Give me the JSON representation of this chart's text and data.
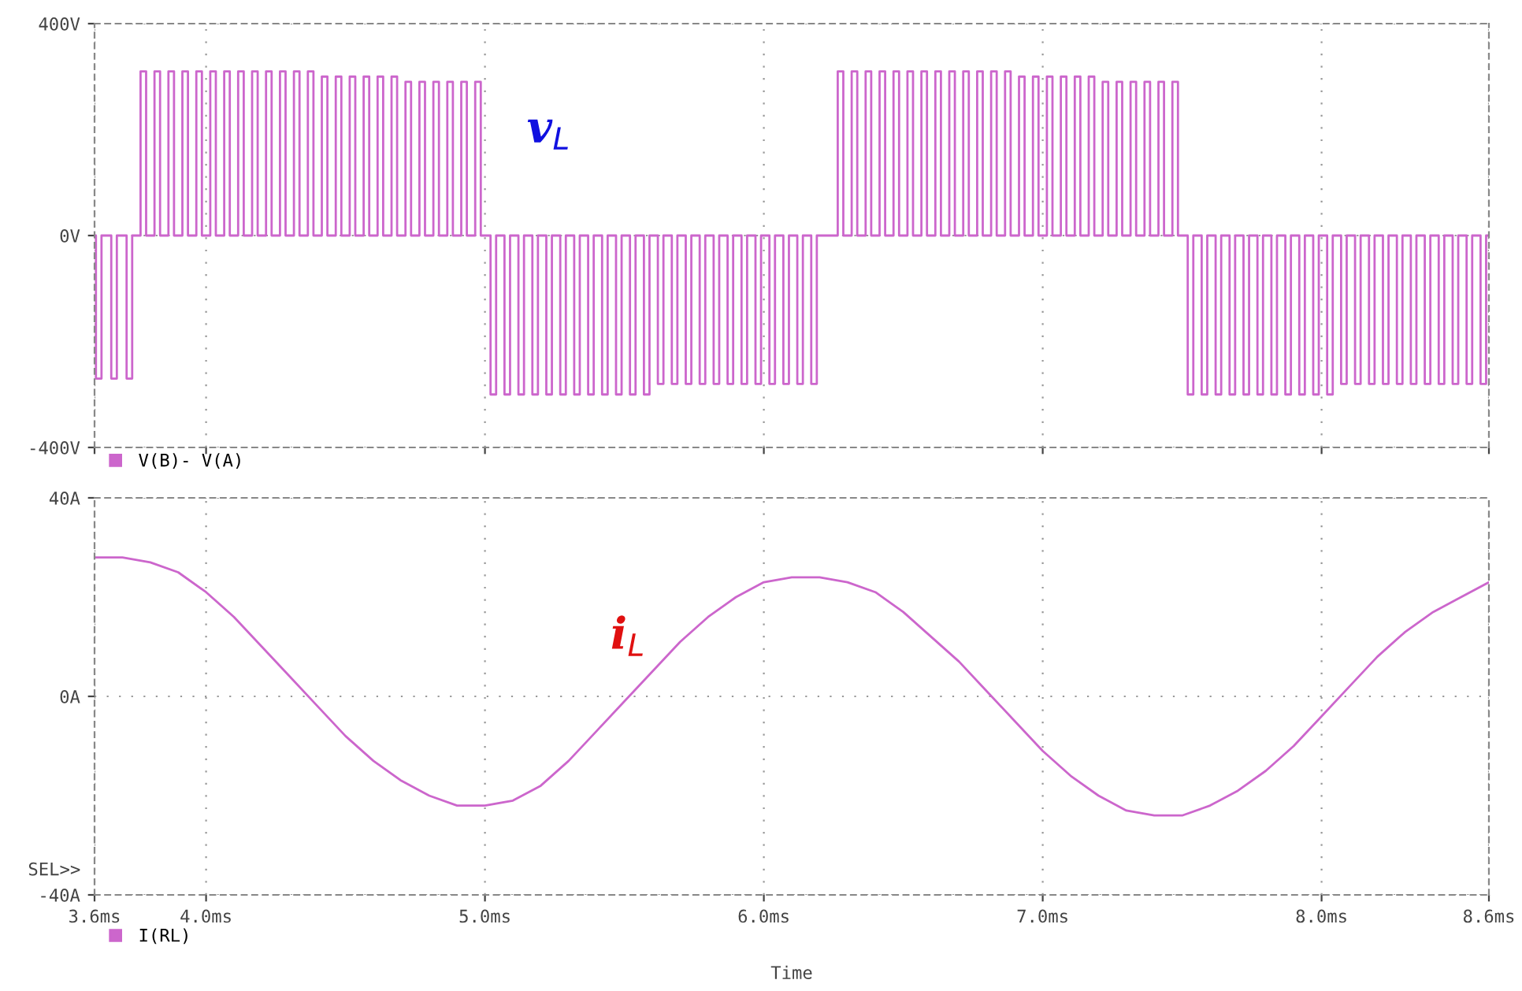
{
  "chart_data": [
    {
      "type": "step",
      "ylim": [
        -400,
        400
      ],
      "yticks": [
        {
          "value": 400,
          "label": "400V"
        },
        {
          "value": 0,
          "label": "0V"
        },
        {
          "value": -400,
          "label": "-400V"
        }
      ],
      "xlim": [
        3.6,
        8.6
      ],
      "xticks": [
        {
          "value": 3.6,
          "label": null
        },
        {
          "value": 4.0,
          "label": null
        },
        {
          "value": 5.0,
          "label": null
        },
        {
          "value": 6.0,
          "label": null
        },
        {
          "value": 7.0,
          "label": null
        },
        {
          "value": 8.0,
          "label": null
        },
        {
          "value": 8.6,
          "label": null
        }
      ],
      "tick_labels": "y",
      "grid": true,
      "legend": "bottom left",
      "marker": "none",
      "line_style": "solid",
      "annotations": [
        "v$_{L}$"
      ],
      "series": [
        {
          "name": "V(B)- V(A)",
          "color": "#cc66cc",
          "x": [
            3.6,
            3.605,
            3.625,
            3.66,
            3.68,
            3.715,
            3.735,
            3.765,
            3.785,
            3.815,
            3.835,
            3.865,
            3.885,
            3.915,
            3.935,
            3.965,
            3.985,
            4.015,
            4.035,
            4.065,
            4.085,
            4.115,
            4.135,
            4.165,
            4.185,
            4.215,
            4.235,
            4.265,
            4.285,
            4.315,
            4.335,
            4.365,
            4.385,
            4.415,
            4.435,
            4.465,
            4.485,
            4.515,
            4.535,
            4.565,
            4.585,
            4.615,
            4.635,
            4.665,
            4.685,
            4.715,
            4.735,
            4.765,
            4.785,
            4.815,
            4.835,
            4.865,
            4.885,
            4.915,
            4.935,
            4.965,
            4.985,
            5.02,
            5.04,
            5.07,
            5.09,
            5.12,
            5.14,
            5.17,
            5.19,
            5.22,
            5.24,
            5.27,
            5.29,
            5.32,
            5.34,
            5.37,
            5.39,
            5.42,
            5.44,
            5.47,
            5.49,
            5.52,
            5.54,
            5.57,
            5.59,
            5.62,
            5.64,
            5.67,
            5.69,
            5.72,
            5.74,
            5.77,
            5.79,
            5.82,
            5.84,
            5.87,
            5.89,
            5.92,
            5.94,
            5.97,
            5.99,
            6.02,
            6.04,
            6.07,
            6.09,
            6.12,
            6.14,
            6.17,
            6.19,
            6.265,
            6.285,
            6.315,
            6.335,
            6.365,
            6.385,
            6.415,
            6.435,
            6.465,
            6.485,
            6.515,
            6.535,
            6.565,
            6.585,
            6.615,
            6.635,
            6.665,
            6.685,
            6.715,
            6.735,
            6.765,
            6.785,
            6.815,
            6.835,
            6.865,
            6.885,
            6.915,
            6.935,
            6.965,
            6.985,
            7.015,
            7.035,
            7.065,
            7.085,
            7.115,
            7.135,
            7.165,
            7.185,
            7.215,
            7.235,
            7.265,
            7.285,
            7.315,
            7.335,
            7.365,
            7.385,
            7.415,
            7.435,
            7.465,
            7.485,
            7.52,
            7.54,
            7.57,
            7.59,
            7.62,
            7.64,
            7.67,
            7.69,
            7.72,
            7.74,
            7.77,
            7.79,
            7.82,
            7.84,
            7.87,
            7.89,
            7.92,
            7.94,
            7.97,
            7.99,
            8.02,
            8.04,
            8.07,
            8.09,
            8.12,
            8.14,
            8.17,
            8.19,
            8.22,
            8.24,
            8.27,
            8.29,
            8.32,
            8.34,
            8.37,
            8.39,
            8.42,
            8.44,
            8.47,
            8.49,
            8.52,
            8.54,
            8.57,
            8.59,
            8.6
          ],
          "values": [
            0,
            -270,
            0,
            -270,
            0,
            -270,
            0,
            310,
            0,
            310,
            0,
            310,
            0,
            310,
            0,
            310,
            0,
            310,
            0,
            310,
            0,
            310,
            0,
            310,
            0,
            310,
            0,
            310,
            0,
            310,
            0,
            310,
            0,
            300,
            0,
            300,
            0,
            300,
            0,
            300,
            0,
            300,
            0,
            300,
            0,
            290,
            0,
            290,
            0,
            290,
            0,
            290,
            0,
            290,
            0,
            290,
            0,
            -300,
            0,
            -300,
            0,
            -300,
            0,
            -300,
            0,
            -300,
            0,
            -300,
            0,
            -300,
            0,
            -300,
            0,
            -300,
            0,
            -300,
            0,
            -300,
            0,
            -300,
            0,
            -280,
            0,
            -280,
            0,
            -280,
            0,
            -280,
            0,
            -280,
            0,
            -280,
            0,
            -280,
            0,
            -280,
            0,
            -280,
            0,
            -280,
            0,
            -280,
            0,
            -280,
            0,
            310,
            0,
            310,
            0,
            310,
            0,
            310,
            0,
            310,
            0,
            310,
            0,
            310,
            0,
            310,
            0,
            310,
            0,
            310,
            0,
            310,
            0,
            310,
            0,
            310,
            0,
            300,
            0,
            300,
            0,
            300,
            0,
            300,
            0,
            300,
            0,
            300,
            0,
            290,
            0,
            290,
            0,
            290,
            0,
            290,
            0,
            290,
            0,
            290,
            0,
            -300,
            0,
            -300,
            0,
            -300,
            0,
            -300,
            0,
            -300,
            0,
            -300,
            0,
            -300,
            0,
            -300,
            0,
            -300,
            0,
            -300,
            0,
            -300,
            0,
            -280,
            0,
            -280,
            0,
            -280,
            0,
            -280,
            0,
            -280,
            0,
            -280,
            0,
            -280,
            0,
            -280,
            0,
            -280,
            0,
            -280,
            0,
            -280,
            0,
            0
          ]
        }
      ]
    },
    {
      "type": "line",
      "xlabel": "Time",
      "ylim": [
        -40,
        40
      ],
      "yticks": [
        {
          "value": 40,
          "label": "40A"
        },
        {
          "value": 0,
          "label": "0A"
        },
        {
          "value": -40,
          "label": "-40A"
        }
      ],
      "xlim": [
        3.6,
        8.6
      ],
      "xticks": [
        {
          "value": 3.6,
          "label": "3.6ms"
        },
        {
          "value": 4.0,
          "label": "4.0ms"
        },
        {
          "value": 5.0,
          "label": "5.0ms"
        },
        {
          "value": 6.0,
          "label": "6.0ms"
        },
        {
          "value": 7.0,
          "label": "7.0ms"
        },
        {
          "value": 8.0,
          "label": "8.0ms"
        },
        {
          "value": 8.6,
          "label": "8.6ms"
        }
      ],
      "grid": true,
      "legend": "bottom left",
      "marker": "none",
      "line_style": "solid",
      "annotations": [
        "i$_{L}$",
        "SEL>>"
      ],
      "series": [
        {
          "name": "I(RL)",
          "color": "#cc66cc",
          "x": [
            3.6,
            3.7,
            3.8,
            3.9,
            4.0,
            4.1,
            4.2,
            4.3,
            4.4,
            4.5,
            4.6,
            4.7,
            4.8,
            4.9,
            5.0,
            5.1,
            5.2,
            5.3,
            5.4,
            5.5,
            5.6,
            5.7,
            5.8,
            5.9,
            6.0,
            6.1,
            6.2,
            6.3,
            6.4,
            6.5,
            6.6,
            6.7,
            6.8,
            6.9,
            7.0,
            7.1,
            7.2,
            7.3,
            7.4,
            7.5,
            7.6,
            7.7,
            7.8,
            7.9,
            8.0,
            8.1,
            8.2,
            8.3,
            8.4,
            8.5,
            8.6
          ],
          "values": [
            28,
            28,
            27,
            25,
            21,
            16,
            10,
            4,
            -2,
            -8,
            -13,
            -17,
            -20,
            -22,
            -22,
            -21,
            -18,
            -13,
            -7,
            -1,
            5,
            11,
            16,
            20,
            23,
            24,
            24,
            23,
            21,
            17,
            12,
            7,
            1,
            -5,
            -11,
            -16,
            -20,
            -23,
            -24,
            -24,
            -22,
            -19,
            -15,
            -10,
            -4,
            2,
            8,
            13,
            17,
            20,
            23
          ]
        }
      ]
    }
  ]
}
